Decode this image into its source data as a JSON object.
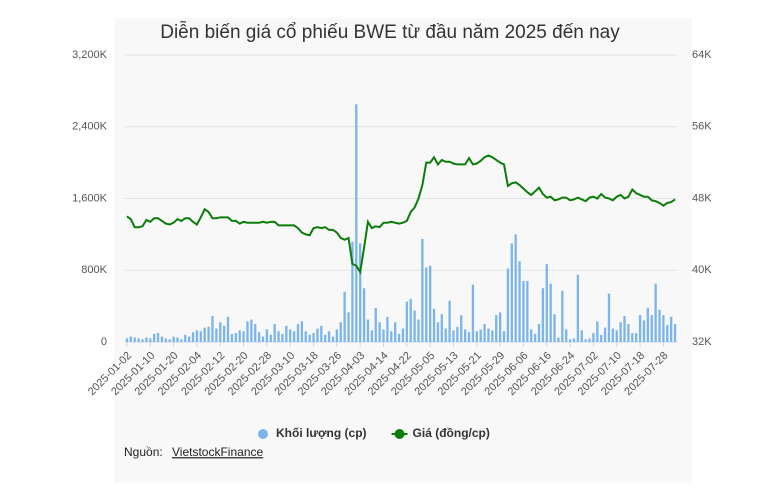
{
  "chart_data": {
    "type": "combo",
    "title": "Diễn biến giá cổ phiếu BWE từ đầu năm 2025 đến nay",
    "categories": [
      "2025-01-02",
      null,
      null,
      null,
      null,
      null,
      "2025-01-10",
      null,
      null,
      null,
      null,
      null,
      "2025-01-20",
      null,
      null,
      null,
      null,
      null,
      "2025-02-04",
      null,
      null,
      null,
      null,
      null,
      "2025-02-12",
      null,
      null,
      null,
      null,
      null,
      "2025-02-20",
      null,
      null,
      null,
      null,
      null,
      "2025-02-28",
      null,
      null,
      null,
      null,
      null,
      "2025-03-10",
      null,
      null,
      null,
      null,
      null,
      "2025-03-18",
      null,
      null,
      null,
      null,
      null,
      "2025-03-26",
      null,
      null,
      null,
      null,
      null,
      "2025-04-03",
      null,
      null,
      null,
      null,
      null,
      "2025-04-14",
      null,
      null,
      null,
      null,
      null,
      "2025-04-22",
      null,
      null,
      null,
      null,
      null,
      "2025-05-05",
      null,
      null,
      null,
      null,
      null,
      "2025-05-13",
      null,
      null,
      null,
      null,
      null,
      "2025-05-21",
      null,
      null,
      null,
      null,
      null,
      "2025-05-29",
      null,
      null,
      null,
      null,
      null,
      "2025-06-06",
      null,
      null,
      null,
      null,
      null,
      "2025-06-16",
      null,
      null,
      null,
      null,
      null,
      "2025-06-24",
      null,
      null,
      null,
      null,
      null,
      "2025-07-02",
      null,
      null,
      null,
      null,
      null,
      "2025-07-10",
      null,
      null,
      null,
      null,
      null,
      "2025-07-18",
      null,
      null,
      null,
      null,
      null,
      "2025-07-28",
      null,
      null,
      null
    ],
    "series": [
      {
        "name": "Khối lượng (cp)",
        "type": "bar",
        "color": "#7cb5ec",
        "values": [
          40000,
          60000,
          50000,
          40000,
          30000,
          50000,
          40000,
          90000,
          100000,
          60000,
          40000,
          30000,
          60000,
          50000,
          30000,
          80000,
          60000,
          110000,
          130000,
          120000,
          160000,
          170000,
          290000,
          150000,
          220000,
          180000,
          280000,
          90000,
          100000,
          130000,
          120000,
          230000,
          250000,
          200000,
          110000,
          60000,
          140000,
          80000,
          200000,
          120000,
          90000,
          180000,
          140000,
          120000,
          200000,
          230000,
          120000,
          80000,
          100000,
          150000,
          180000,
          80000,
          120000,
          60000,
          140000,
          220000,
          560000,
          330000,
          1120000,
          2650000,
          1100000,
          600000,
          250000,
          130000,
          380000,
          220000,
          140000,
          280000,
          120000,
          220000,
          90000,
          150000,
          450000,
          480000,
          350000,
          250000,
          1150000,
          830000,
          850000,
          370000,
          220000,
          310000,
          150000,
          460000,
          130000,
          170000,
          300000,
          140000,
          110000,
          640000,
          120000,
          140000,
          200000,
          150000,
          130000,
          300000,
          330000,
          120000,
          820000,
          1100000,
          1200000,
          900000,
          680000,
          680000,
          140000,
          90000,
          200000,
          600000,
          870000,
          650000,
          310000,
          50000,
          570000,
          140000,
          30000,
          40000,
          750000,
          130000,
          30000,
          40000,
          100000,
          230000,
          80000,
          160000,
          540000,
          150000,
          130000,
          220000,
          290000,
          200000,
          100000,
          100000,
          300000,
          240000,
          380000,
          300000,
          650000,
          360000,
          300000,
          190000,
          280000,
          200000
        ]
      },
      {
        "name": "Giá (đồng/cp)",
        "type": "line",
        "axis": "y2",
        "color": "#0a7d0a",
        "values": [
          46000,
          45700,
          44800,
          44800,
          44900,
          45600,
          45400,
          45800,
          45800,
          45500,
          45200,
          45100,
          45300,
          45700,
          45500,
          45800,
          45800,
          45400,
          45100,
          45900,
          46800,
          46500,
          45800,
          45800,
          45900,
          45900,
          45900,
          45500,
          45500,
          45200,
          45400,
          45300,
          45300,
          45300,
          45300,
          45400,
          45300,
          45400,
          45400,
          45000,
          45000,
          45000,
          45000,
          45000,
          44700,
          44200,
          44000,
          43900,
          44700,
          44800,
          44700,
          44800,
          44500,
          44500,
          44200,
          43600,
          43400,
          43600,
          40700,
          40500,
          39800,
          42500,
          45400,
          44700,
          44900,
          44800,
          45300,
          45300,
          45400,
          45300,
          45200,
          45300,
          45500,
          46500,
          47000,
          48000,
          49500,
          52000,
          52000,
          52600,
          51800,
          52300,
          52100,
          52100,
          51900,
          51800,
          51800,
          51800,
          52500,
          51800,
          51900,
          52200,
          52600,
          52800,
          52600,
          52300,
          52000,
          51800,
          49400,
          49700,
          49800,
          49500,
          49100,
          48700,
          48400,
          48800,
          49200,
          48500,
          48100,
          48200,
          47800,
          47900,
          48100,
          48100,
          47800,
          47900,
          48100,
          47900,
          47700,
          48100,
          48200,
          48000,
          48500,
          48100,
          48000,
          47800,
          48200,
          48400,
          48000,
          48200,
          49000,
          48600,
          48400,
          48200,
          48200,
          47800,
          47700,
          47500,
          47200,
          47500,
          47600,
          47900
        ]
      }
    ],
    "ylim": [
      0,
      3200000
    ],
    "yticks": [
      0,
      {
        "value": 800000,
        "label": "800K"
      },
      {
        "value": 1600000,
        "label": "1,600K"
      },
      {
        "value": 2400000,
        "label": "2,400K"
      },
      {
        "value": 3200000,
        "label": "3,200K"
      }
    ],
    "y2lim": [
      32000,
      64000
    ],
    "y2ticks": [
      {
        "value": 32000,
        "label": "32K"
      },
      {
        "value": 40000,
        "label": "40K"
      },
      {
        "value": 48000,
        "label": "48K"
      },
      {
        "value": 56000,
        "label": "56K"
      },
      {
        "value": 64000,
        "label": "64K"
      }
    ],
    "grid": true,
    "legend": "bottom",
    "source_label": "Nguồn:",
    "source_link": "VietstockFinance"
  }
}
